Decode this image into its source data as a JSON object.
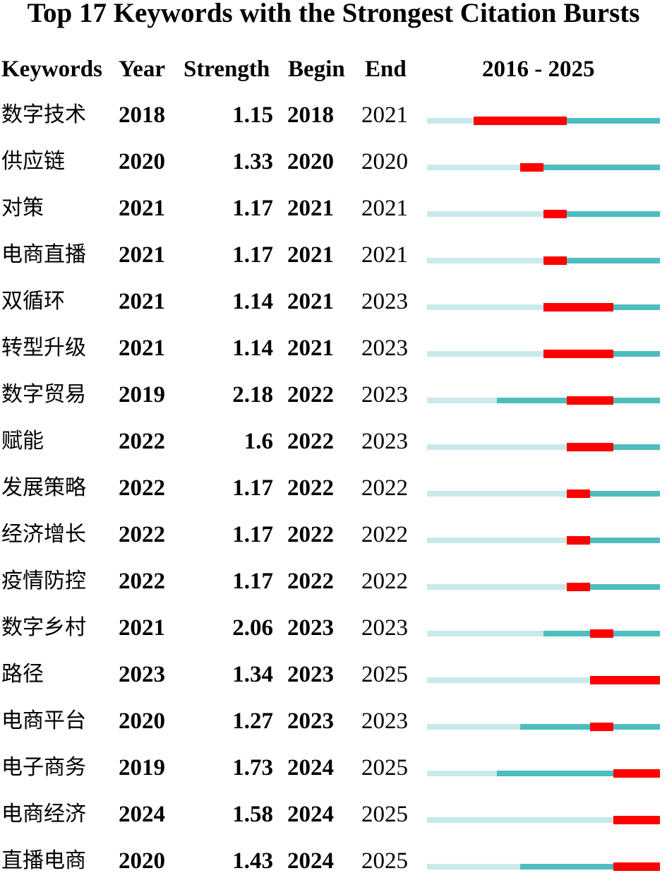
{
  "chart_data": {
    "type": "table",
    "title": "Top 17 Keywords with the Strongest Citation Bursts",
    "columns": [
      "Keywords",
      "Year",
      "Strength",
      "Begin",
      "End",
      "2016 - 2025"
    ],
    "range_start": 2016,
    "range_end": 2025,
    "colors": {
      "before_appearance": "#c9e9ea",
      "after_appearance": "#4dbdbf",
      "burst": "#ff0000"
    },
    "rows": [
      {
        "keyword": "数字技术",
        "year": "2018",
        "strength": "1.15",
        "begin": "2018",
        "end": "2021"
      },
      {
        "keyword": "供应链",
        "year": "2020",
        "strength": "1.33",
        "begin": "2020",
        "end": "2020"
      },
      {
        "keyword": "对策",
        "year": "2021",
        "strength": "1.17",
        "begin": "2021",
        "end": "2021"
      },
      {
        "keyword": "电商直播",
        "year": "2021",
        "strength": "1.17",
        "begin": "2021",
        "end": "2021"
      },
      {
        "keyword": "双循环",
        "year": "2021",
        "strength": "1.14",
        "begin": "2021",
        "end": "2023"
      },
      {
        "keyword": "转型升级",
        "year": "2021",
        "strength": "1.14",
        "begin": "2021",
        "end": "2023"
      },
      {
        "keyword": "数字贸易",
        "year": "2019",
        "strength": "2.18",
        "begin": "2022",
        "end": "2023"
      },
      {
        "keyword": "赋能",
        "year": "2022",
        "strength": "1.6",
        "begin": "2022",
        "end": "2023"
      },
      {
        "keyword": "发展策略",
        "year": "2022",
        "strength": "1.17",
        "begin": "2022",
        "end": "2022"
      },
      {
        "keyword": "经济增长",
        "year": "2022",
        "strength": "1.17",
        "begin": "2022",
        "end": "2022"
      },
      {
        "keyword": "疫情防控",
        "year": "2022",
        "strength": "1.17",
        "begin": "2022",
        "end": "2022"
      },
      {
        "keyword": "数字乡村",
        "year": "2021",
        "strength": "2.06",
        "begin": "2023",
        "end": "2023"
      },
      {
        "keyword": "路径",
        "year": "2023",
        "strength": "1.34",
        "begin": "2023",
        "end": "2025"
      },
      {
        "keyword": "电商平台",
        "year": "2020",
        "strength": "1.27",
        "begin": "2023",
        "end": "2023"
      },
      {
        "keyword": "电子商务",
        "year": "2019",
        "strength": "1.73",
        "begin": "2024",
        "end": "2025"
      },
      {
        "keyword": "电商经济",
        "year": "2024",
        "strength": "1.58",
        "begin": "2024",
        "end": "2025"
      },
      {
        "keyword": "直播电商",
        "year": "2020",
        "strength": "1.43",
        "begin": "2024",
        "end": "2025"
      }
    ]
  }
}
